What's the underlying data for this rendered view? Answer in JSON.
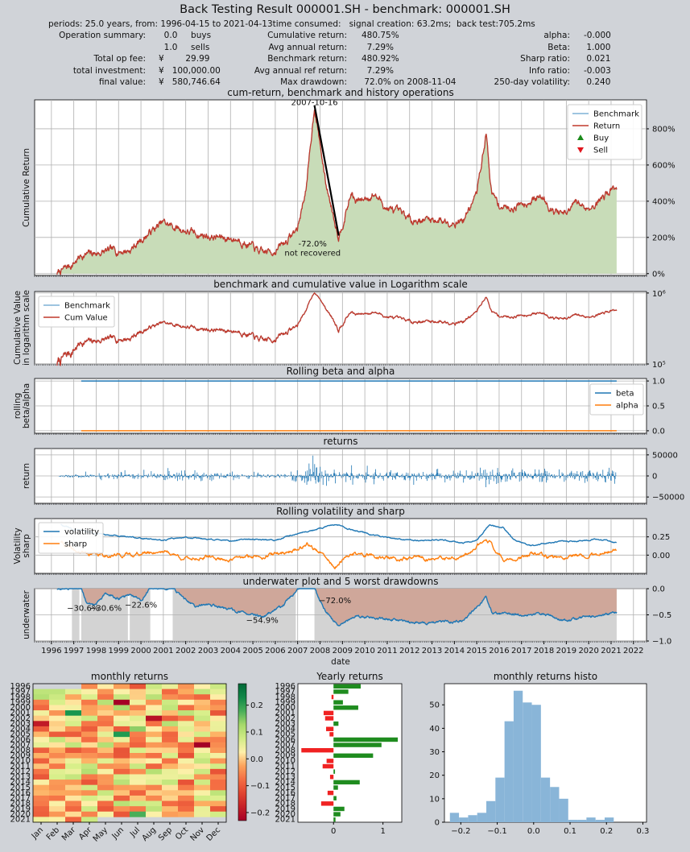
{
  "title": "Back Testing Result 000001.SH - benchmark: 000001.SH",
  "info_line": "periods: 25.0 years, from: 1996-04-15 to 2021-04-13time consumed:   signal creation: 63.2ms;  back test:705.2ms",
  "summary": {
    "col1": [
      {
        "label": "Operation summary:",
        "value": "  0.0     buys"
      },
      {
        "label": "",
        "value": "  1.0     sells"
      },
      {
        "label": "Total op fee:",
        "value": "¥        29.99"
      },
      {
        "label": "total investment:",
        "value": "¥   100,000.00"
      },
      {
        "label": "final value:",
        "value": "¥   580,746.64"
      }
    ],
    "col2": [
      {
        "label": "Cumulative return:",
        "value": "480.75%"
      },
      {
        "label": "Avg annual return:",
        "value": "  7.29%"
      },
      {
        "label": "Benchmark return:",
        "value": "480.92%"
      },
      {
        "label": "Avg annual ref return:",
        "value": "  7.29%"
      },
      {
        "label": "Max drawdown:",
        "value": " 72.0% on 2008-11-04"
      }
    ],
    "col3": [
      {
        "label": "alpha:",
        "value": "-0.000"
      },
      {
        "label": "Beta:",
        "value": " 1.000"
      },
      {
        "label": "Sharp ratio:",
        "value": " 0.021"
      },
      {
        "label": "Info ratio:",
        "value": "-0.003"
      },
      {
        "label": "250-day volatility:",
        "value": " 0.240"
      }
    ]
  },
  "colors": {
    "benchmark": "#7fb2d5",
    "return": "#c0392b",
    "return_fill": "#c8dcb8",
    "beta": "#1f77b4",
    "alpha": "#ff7f0e",
    "buy": "#1a8a1a",
    "sell": "#e0151d",
    "underwater_fill": "#cfa79a",
    "drawdown_shade": "#d3d3d3",
    "yearly_pos": "#1f8c1f",
    "yearly_neg": "#f02222",
    "histo": "#89b5d8"
  },
  "chart_data": [
    {
      "id": "cum",
      "type": "line",
      "title": "cum-return, benchmark and history operations",
      "ylabel": "Cumulative Return",
      "xlim": [
        "1995-04",
        "2022-08"
      ],
      "ylim": [
        -0.1,
        9.6
      ],
      "yticks": [
        0,
        2,
        4,
        6,
        8
      ],
      "ytick_labels": [
        "0%",
        "200%",
        "400%",
        "600%",
        "800%"
      ],
      "legend": [
        "Benchmark",
        "Return",
        "Buy",
        "Sell"
      ],
      "legend_position": "top-right",
      "series": [
        {
          "name": "Return",
          "x": [
            "1996-04",
            "1996-12",
            "1997-05",
            "1998-06",
            "1999-07",
            "2000-06",
            "2001-01",
            "2001-06",
            "2002-06",
            "2003-06",
            "2004-06",
            "2005-06",
            "2006-01",
            "2006-06",
            "2007-01",
            "2007-06",
            "2007-10",
            "2008-04",
            "2008-11",
            "2009-06",
            "2009-08",
            "2010-06",
            "2011-01",
            "2012-01",
            "2013-01",
            "2014-01",
            "2014-06",
            "2015-01",
            "2015-06",
            "2015-09",
            "2016-01",
            "2016-06",
            "2017-01",
            "2017-06",
            "2018-01",
            "2018-06",
            "2019-01",
            "2019-06",
            "2020-01",
            "2020-06",
            "2021-01",
            "2021-04"
          ],
          "y": [
            0.0,
            0.5,
            1.0,
            1.2,
            1.3,
            2.3,
            2.8,
            2.6,
            2.2,
            2.0,
            1.9,
            1.1,
            1.3,
            1.7,
            2.5,
            5.0,
            9.3,
            5.0,
            2.1,
            4.5,
            3.9,
            4.4,
            3.6,
            3.0,
            3.0,
            2.9,
            3.0,
            4.4,
            7.8,
            4.4,
            3.8,
            3.6,
            3.9,
            4.1,
            4.2,
            3.5,
            3.2,
            3.9,
            3.6,
            4.0,
            4.7,
            4.8
          ]
        }
      ],
      "annotations": [
        {
          "text": "2007-10-16",
          "x": "2007-10",
          "y": 9.3
        },
        {
          "text": "-72.0%",
          "x": "2007-09",
          "y": 1.5
        },
        {
          "text": "not recovered",
          "x": "2007-09",
          "y": 1.0
        }
      ],
      "max_drawdown_line": {
        "from": [
          "2007-10",
          9.3
        ],
        "to": [
          "2008-11",
          2.1
        ]
      }
    },
    {
      "id": "log",
      "type": "line",
      "title": "benchmark and cumulative value in Logarithm scale",
      "ylabel": [
        "Cumulative Value",
        "in logarithm scale"
      ],
      "yscale": "log",
      "yticks": [
        100000,
        1000000
      ],
      "ytick_labels": [
        "10⁵",
        "10⁶"
      ],
      "ylim": [
        100000,
        1050000
      ],
      "legend": [
        "Benchmark",
        "Cum Value"
      ],
      "legend_position": "top-left"
    },
    {
      "id": "beta",
      "type": "line",
      "title": "Rolling beta and alpha",
      "ylabel": [
        "rolling",
        "beta/alpha"
      ],
      "ylim": [
        -0.05,
        1.05
      ],
      "yticks": [
        0.0,
        0.5,
        1.0
      ],
      "ytick_labels": [
        "0.0",
        "0.5",
        "1.0"
      ],
      "legend": [
        "beta",
        "alpha"
      ],
      "legend_position": "center-right",
      "series": [
        {
          "name": "beta",
          "x": [
            "1997-05",
            "2021-04"
          ],
          "y": [
            1.0,
            1.0
          ]
        },
        {
          "name": "alpha",
          "x": [
            "1997-05",
            "2021-04"
          ],
          "y": [
            0.0,
            0.0
          ]
        }
      ]
    },
    {
      "id": "returns",
      "type": "bar",
      "title": "returns",
      "ylabel": "return",
      "ylim": [
        -65000,
        65000
      ],
      "yticks": [
        50000,
        0,
        -50000
      ],
      "ytick_labels": [
        "50000",
        "0",
        "−50000"
      ]
    },
    {
      "id": "vol",
      "type": "line",
      "title": "Rolling volatility and sharp",
      "ylabel": [
        "Volatility",
        "sharp"
      ],
      "ylim": [
        -0.25,
        0.5
      ],
      "yticks": [
        0.25,
        0.0
      ],
      "ytick_labels": [
        "0.25",
        "0.00"
      ],
      "legend": [
        "volatility",
        "sharp"
      ],
      "legend_position": "top-left",
      "series": [
        {
          "name": "volatility",
          "x": [
            "1996-06",
            "1997-01",
            "1998-01",
            "1999-01",
            "2000-01",
            "2001-01",
            "2002-01",
            "2003-01",
            "2004-01",
            "2005-01",
            "2006-01",
            "2007-01",
            "2008-01",
            "2008-09",
            "2009-06",
            "2010-06",
            "2011-06",
            "2012-06",
            "2013-06",
            "2014-06",
            "2015-01",
            "2015-08",
            "2016-03",
            "2016-09",
            "2017-06",
            "2018-06",
            "2019-06",
            "2020-06",
            "2021-04"
          ],
          "y": [
            0.42,
            0.35,
            0.3,
            0.26,
            0.23,
            0.2,
            0.25,
            0.21,
            0.2,
            0.22,
            0.2,
            0.3,
            0.36,
            0.42,
            0.35,
            0.27,
            0.22,
            0.2,
            0.21,
            0.17,
            0.2,
            0.42,
            0.38,
            0.2,
            0.13,
            0.18,
            0.19,
            0.22,
            0.17
          ]
        },
        {
          "name": "sharp",
          "x": [
            "1996-06",
            "1997-01",
            "1998-01",
            "1999-01",
            "2000-01",
            "2001-01",
            "2002-01",
            "2003-01",
            "2004-01",
            "2005-01",
            "2006-01",
            "2007-01",
            "2007-06",
            "2008-01",
            "2008-09",
            "2009-06",
            "2010-06",
            "2011-06",
            "2012-06",
            "2013-06",
            "2014-06",
            "2015-01",
            "2015-06",
            "2016-03",
            "2016-09",
            "2017-06",
            "2018-06",
            "2019-06",
            "2020-06",
            "2021-04"
          ],
          "y": [
            0.18,
            0.05,
            0.0,
            0.0,
            0.02,
            0.06,
            -0.05,
            -0.03,
            -0.06,
            -0.02,
            0.01,
            0.08,
            0.16,
            0.03,
            -0.17,
            0.02,
            -0.01,
            -0.06,
            -0.04,
            -0.06,
            -0.04,
            0.1,
            0.25,
            -0.05,
            -0.08,
            0.02,
            -0.04,
            0.0,
            0.02,
            0.08
          ]
        }
      ]
    },
    {
      "id": "underwater",
      "type": "area",
      "title": "underwater plot and 5 worst drawdowns",
      "ylabel": "underwater",
      "xlabel": "date",
      "ylim": [
        -1.0,
        0.0
      ],
      "yticks": [
        0.0,
        -0.5,
        -1.0
      ],
      "ytick_labels": [
        "0.0",
        "−0.5",
        "−1.0"
      ],
      "xtick_labels": [
        "1996",
        "1997",
        "1998",
        "1999",
        "2000",
        "2001",
        "2002",
        "2003",
        "2004",
        "2005",
        "2006",
        "2007",
        "2008",
        "2009",
        "2010",
        "2011",
        "2012",
        "2013",
        "2014",
        "2015",
        "2016",
        "2017",
        "2018",
        "2019",
        "2020",
        "2021",
        "2022"
      ],
      "series": [
        {
          "name": "underwater",
          "x": [
            "1996-04",
            "1996-12",
            "1997-05",
            "1997-08",
            "1998-01",
            "1998-06",
            "1999-01",
            "1999-07",
            "2000-01",
            "2000-06",
            "2001-06",
            "2002-06",
            "2003-01",
            "2004-01",
            "2005-06",
            "2006-06",
            "2007-01",
            "2007-10",
            "2008-04",
            "2008-11",
            "2009-08",
            "2010-06",
            "2012-01",
            "2013-01",
            "2014-06",
            "2015-06",
            "2015-09",
            "2016-06",
            "2018-01",
            "2019-01",
            "2020-06",
            "2021-04"
          ],
          "y": [
            0.0,
            0.0,
            0.0,
            -0.3,
            -0.3,
            -0.1,
            -0.2,
            -0.1,
            -0.22,
            0.0,
            0.0,
            -0.35,
            -0.3,
            -0.4,
            -0.55,
            -0.3,
            0.0,
            0.0,
            -0.45,
            -0.72,
            -0.52,
            -0.55,
            -0.65,
            -0.65,
            -0.62,
            -0.15,
            -0.45,
            -0.5,
            -0.48,
            -0.6,
            -0.5,
            -0.45
          ]
        }
      ],
      "drawdown_labels": [
        {
          "text": "−30.6%",
          "x": "1997-06",
          "y": -0.42
        },
        {
          "text": "−30.6%",
          "x": "1998-06",
          "y": -0.42
        },
        {
          "text": "−22.6%",
          "x": "2000-01",
          "y": -0.36
        },
        {
          "text": "−54.9%",
          "x": "2005-06",
          "y": -0.65
        },
        {
          "text": "−72.0%",
          "x": "2008-09",
          "y": -0.28
        }
      ],
      "drawdown_spans": [
        [
          "1996-12",
          "1997-04"
        ],
        [
          "1997-05",
          "1999-06"
        ],
        [
          "1999-07",
          "2000-06"
        ],
        [
          "2001-06",
          "2006-12"
        ],
        [
          "2007-10",
          "2021-04"
        ]
      ]
    },
    {
      "id": "monthly",
      "type": "heatmap",
      "title": "monthly returns",
      "rows": [
        "1996",
        "1997",
        "1998",
        "1999",
        "2000",
        "2001",
        "2002",
        "2003",
        "2004",
        "2005",
        "2006",
        "2007",
        "2008",
        "2009",
        "2010",
        "2011",
        "2012",
        "2013",
        "2014",
        "2015",
        "2016",
        "2017",
        "2018",
        "2019",
        "2020",
        "2021"
      ],
      "cols": [
        "Jan",
        "Feb",
        "Mar",
        "Apr",
        "May",
        "Jun",
        "Jul",
        "Aug",
        "Sep",
        "Oct",
        "Nov",
        "Dec"
      ],
      "colorbar_ticks": [
        0.2,
        0.1,
        0.0,
        -0.1,
        -0.2
      ],
      "colorbar_labels": [
        "0.2",
        "0.1",
        "0.0",
        "−0.1",
        "−0.2"
      ],
      "vmin": -0.23,
      "vmax": 0.28
    },
    {
      "id": "yearly",
      "type": "bar",
      "orientation": "horizontal",
      "title": "Yearly returns",
      "categories": [
        "1996",
        "1997",
        "1998",
        "1999",
        "2000",
        "2001",
        "2002",
        "2003",
        "2004",
        "2005",
        "2006",
        "2007",
        "2008",
        "2009",
        "2010",
        "2011",
        "2012",
        "2013",
        "2014",
        "2015",
        "2016",
        "2017",
        "2018",
        "2019",
        "2020",
        "2021"
      ],
      "values": [
        0.55,
        0.3,
        -0.04,
        0.19,
        0.5,
        -0.2,
        -0.17,
        0.1,
        -0.15,
        -0.08,
        1.3,
        0.97,
        -0.65,
        0.8,
        -0.14,
        -0.22,
        0.03,
        -0.07,
        0.53,
        0.09,
        -0.12,
        0.06,
        -0.25,
        0.22,
        0.14,
        0.04
      ],
      "xlim": [
        -0.72,
        1.38
      ],
      "xticks": [
        0,
        1
      ],
      "xtick_labels": [
        "0",
        "1"
      ]
    },
    {
      "id": "histo",
      "type": "bar",
      "title": "monthly returns histo",
      "bin_edges": [
        -0.23,
        -0.205,
        -0.18,
        -0.155,
        -0.13,
        -0.105,
        -0.08,
        -0.055,
        -0.03,
        -0.005,
        0.02,
        0.045,
        0.07,
        0.095,
        0.12,
        0.145,
        0.17,
        0.195,
        0.22,
        0.245,
        0.27,
        0.295
      ],
      "values": [
        4,
        2,
        3,
        4,
        9,
        19,
        43,
        56,
        51,
        50,
        19,
        15,
        10,
        1,
        1,
        2,
        1,
        2,
        0,
        0,
        0
      ],
      "ylim": [
        0,
        59
      ],
      "yticks": [
        0,
        10,
        20,
        30,
        40,
        50
      ],
      "xticks": [
        -0.2,
        -0.1,
        0.0,
        0.1,
        0.2,
        0.3
      ],
      "xtick_labels": [
        "−0.2",
        "−0.1",
        "0.0",
        "0.1",
        "0.2",
        "0.3"
      ]
    }
  ]
}
